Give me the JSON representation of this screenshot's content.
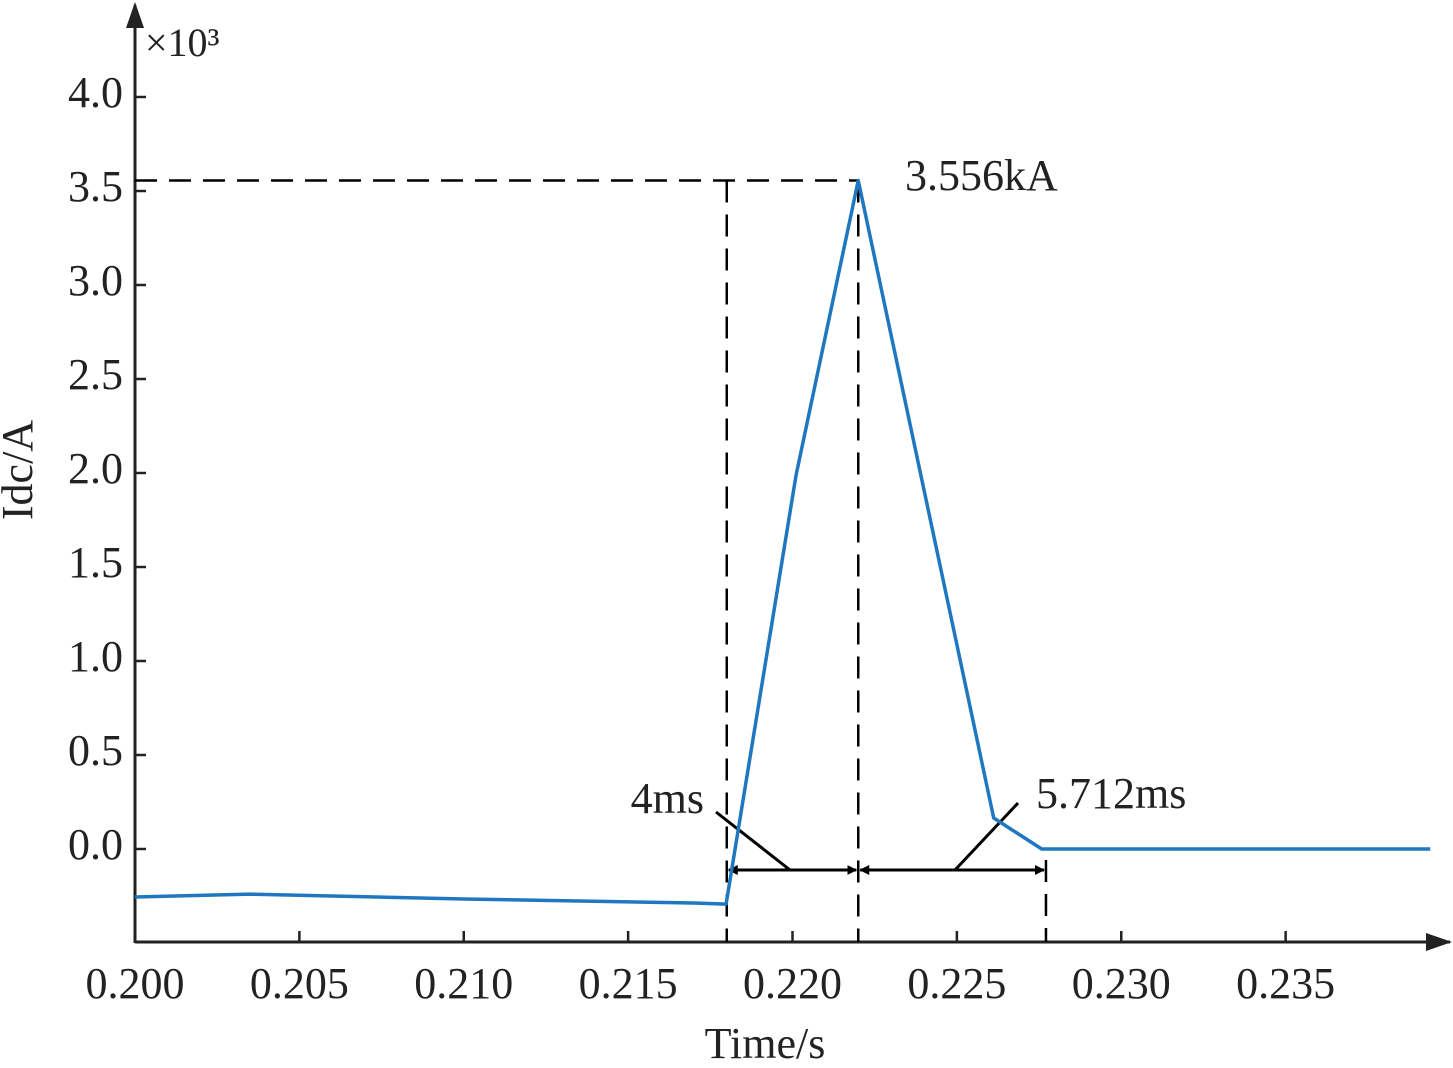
{
  "chart_data": {
    "type": "line",
    "xlabel": "Time/s",
    "ylabel": "Idc/A",
    "y_multiplier": "×10³",
    "xlim": [
      0.2,
      0.24
    ],
    "ylim": [
      -0.5,
      4.5
    ],
    "xticks": [
      {
        "value": 0.2,
        "label": "0.200"
      },
      {
        "value": 0.205,
        "label": "0.205"
      },
      {
        "value": 0.21,
        "label": "0.210"
      },
      {
        "value": 0.215,
        "label": "0.215"
      },
      {
        "value": 0.22,
        "label": "0.220"
      },
      {
        "value": 0.225,
        "label": "0.225"
      },
      {
        "value": 0.23,
        "label": "0.230"
      },
      {
        "value": 0.235,
        "label": "0.235"
      }
    ],
    "yticks": [
      {
        "value": 0,
        "label": "0.0"
      },
      {
        "value": 0.5,
        "label": "0.5"
      },
      {
        "value": 1,
        "label": "1.0"
      },
      {
        "value": 1.5,
        "label": "1.5"
      },
      {
        "value": 2,
        "label": "2.0"
      },
      {
        "value": 2.5,
        "label": "2.5"
      },
      {
        "value": 3,
        "label": "3.0"
      },
      {
        "value": 3.5,
        "label": "3.5"
      },
      {
        "value": 4,
        "label": "4.0"
      }
    ],
    "x": [
      0.2,
      0.2035,
      0.21,
      0.217,
      0.21798,
      0.21816,
      0.22011,
      0.222,
      0.22612,
      0.22758,
      0.2394
    ],
    "series": [
      {
        "name": "Idc",
        "color": "#1f77c0",
        "values": [
          -0.255,
          -0.24,
          -0.266,
          -0.287,
          -0.293,
          -0.1,
          1.99,
          3.556,
          0.165,
          0,
          0
        ]
      }
    ],
    "peak_label": "3.556kA",
    "spans": [
      {
        "label": "4ms",
        "x": [
          0.218,
          0.222
        ]
      },
      {
        "label": "5.712ms",
        "x": [
          0.222,
          0.22771
        ]
      }
    ]
  }
}
